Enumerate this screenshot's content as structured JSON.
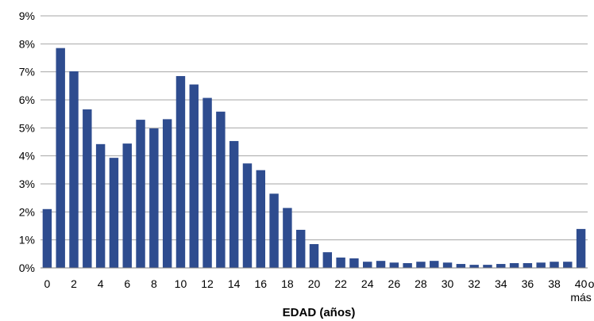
{
  "chart_data": {
    "type": "bar",
    "title": "",
    "xlabel": "EDAD (años)",
    "ylabel": "",
    "ylim": [
      0,
      9
    ],
    "y_ticks": [
      "0%",
      "1%",
      "2%",
      "3%",
      "4%",
      "5%",
      "6%",
      "7%",
      "8%",
      "9%"
    ],
    "grid": "horizontal",
    "legend": "none",
    "bar_color": "#2E4C8F",
    "categories": [
      "0",
      "1",
      "2",
      "3",
      "4",
      "5",
      "6",
      "7",
      "8",
      "9",
      "10",
      "11",
      "12",
      "13",
      "14",
      "15",
      "16",
      "17",
      "18",
      "19",
      "20",
      "21",
      "22",
      "23",
      "24",
      "25",
      "26",
      "27",
      "28",
      "29",
      "30",
      "31",
      "32",
      "33",
      "34",
      "35",
      "36",
      "37",
      "38",
      "39",
      "40 o más"
    ],
    "x_tick_labels": [
      "0",
      "",
      "2",
      "",
      "4",
      "",
      "6",
      "",
      "8",
      "",
      "10",
      "",
      "12",
      "",
      "14",
      "",
      "16",
      "",
      "18",
      "",
      "20",
      "",
      "22",
      "",
      "24",
      "",
      "26",
      "",
      "28",
      "",
      "30",
      "",
      "32",
      "",
      "34",
      "",
      "36",
      "",
      "38",
      "",
      "40"
    ],
    "last_label_suffix": [
      "o",
      "más"
    ],
    "values": [
      2.1,
      7.85,
      7.02,
      5.66,
      4.42,
      3.93,
      4.44,
      5.29,
      4.98,
      5.31,
      6.85,
      6.55,
      6.07,
      5.58,
      4.53,
      3.73,
      3.49,
      2.65,
      2.14,
      1.36,
      0.85,
      0.56,
      0.37,
      0.34,
      0.22,
      0.25,
      0.19,
      0.17,
      0.22,
      0.25,
      0.19,
      0.14,
      0.11,
      0.11,
      0.14,
      0.17,
      0.17,
      0.19,
      0.22,
      0.22,
      1.39
    ]
  }
}
